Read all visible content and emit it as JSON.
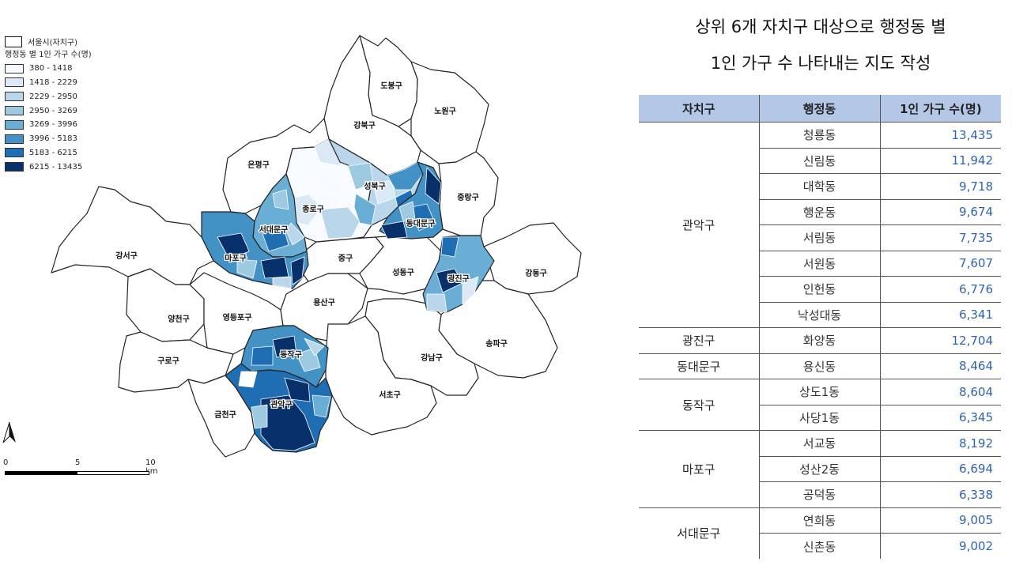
{
  "title": {
    "line1": "상위 6개 자치구 대상으로 행정동 별",
    "line2": "1인 가구 수 나타내는 지도 작성"
  },
  "legend": {
    "boundary_label": "서울시(자치구)",
    "title": "행정동 별 1인 가구 수(명)",
    "classes": [
      {
        "label": "380 - 1418",
        "color": "#f7fbff"
      },
      {
        "label": "1418 - 2229",
        "color": "#dbe9f6"
      },
      {
        "label": "2229 - 2950",
        "color": "#bad6eb"
      },
      {
        "label": "2950 - 3269",
        "color": "#9ecae1"
      },
      {
        "label": "3269 - 3996",
        "color": "#6aaed6"
      },
      {
        "label": "3996 - 5183",
        "color": "#4292c6"
      },
      {
        "label": "5183 - 6215",
        "color": "#1f6eb3"
      },
      {
        "label": "6215 - 13435",
        "color": "#08306b"
      }
    ]
  },
  "scalebar": {
    "label_0": "0",
    "label_5": "5",
    "label_10": "10 km"
  },
  "map": {
    "districts": [
      "도봉구",
      "노원구",
      "강북구",
      "은평구",
      "성북구",
      "종로구",
      "중랑구",
      "동대문구",
      "서대문구",
      "마포구",
      "중구",
      "성동구",
      "광진구",
      "강동구",
      "강서구",
      "용산구",
      "양천구",
      "영등포구",
      "동작구",
      "구로구",
      "강남구",
      "송파구",
      "서초구",
      "관악구",
      "금천구"
    ]
  },
  "table": {
    "headers": [
      "자치구",
      "행정동",
      "1인 가구 수(명)"
    ],
    "groups": [
      {
        "gu": "관악구",
        "rows": [
          {
            "dong": "청룡동",
            "count": "13,435"
          },
          {
            "dong": "신림동",
            "count": "11,942"
          },
          {
            "dong": "대학동",
            "count": "9,718"
          },
          {
            "dong": "행운동",
            "count": "9,674"
          },
          {
            "dong": "서림동",
            "count": "7,735"
          },
          {
            "dong": "서원동",
            "count": "7,607"
          },
          {
            "dong": "인헌동",
            "count": "6,776"
          },
          {
            "dong": "낙성대동",
            "count": "6,341"
          }
        ]
      },
      {
        "gu": "광진구",
        "rows": [
          {
            "dong": "화양동",
            "count": "12,704"
          }
        ]
      },
      {
        "gu": "동대문구",
        "rows": [
          {
            "dong": "용신동",
            "count": "8,464"
          }
        ]
      },
      {
        "gu": "동작구",
        "rows": [
          {
            "dong": "상도1동",
            "count": "8,604"
          },
          {
            "dong": "사당1동",
            "count": "6,345"
          }
        ]
      },
      {
        "gu": "마포구",
        "rows": [
          {
            "dong": "서교동",
            "count": "8,192"
          },
          {
            "dong": "성산2동",
            "count": "6,694"
          },
          {
            "dong": "공덕동",
            "count": "6,338"
          }
        ]
      },
      {
        "gu": "서대문구",
        "rows": [
          {
            "dong": "연희동",
            "count": "9,005"
          },
          {
            "dong": "신촌동",
            "count": "9,002"
          }
        ]
      }
    ]
  }
}
